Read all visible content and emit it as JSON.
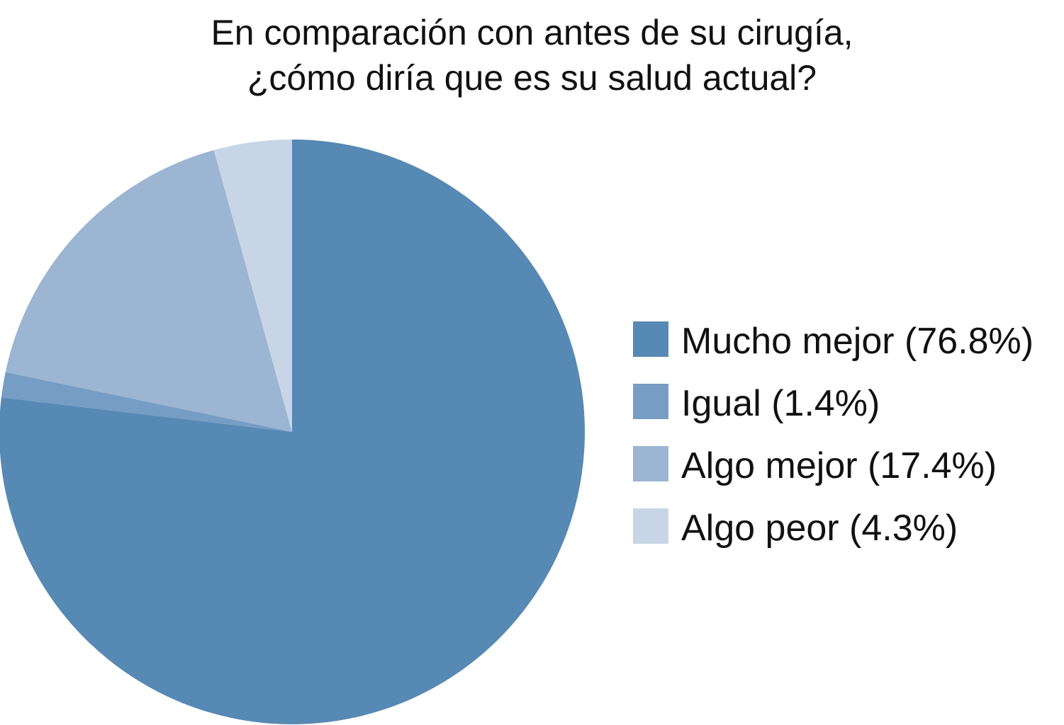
{
  "chart_data": {
    "type": "pie",
    "title": "En comparación con antes de su cirugía,\n¿cómo diría que es su salud actual?",
    "title_lines": [
      "En comparación con antes de su cirugía,",
      "¿cómo diría que es su salud actual?"
    ],
    "categories": [
      "Mucho mejor",
      "Igual",
      "Algo mejor",
      "Algo peor"
    ],
    "values": [
      76.8,
      1.4,
      17.4,
      4.3
    ],
    "unit": "%",
    "legend_labels": [
      "Mucho mejor (76.8%)",
      "Igual (1.4%)",
      "Algo mejor (17.4%)",
      "Algo peor (4.3%)"
    ],
    "colors": [
      "#5689b3",
      "#769dc3",
      "#9bb5d2",
      "#c8d5e6"
    ],
    "start_angle": "12 o'clock",
    "direction": "clockwise",
    "legend_position": "right"
  }
}
